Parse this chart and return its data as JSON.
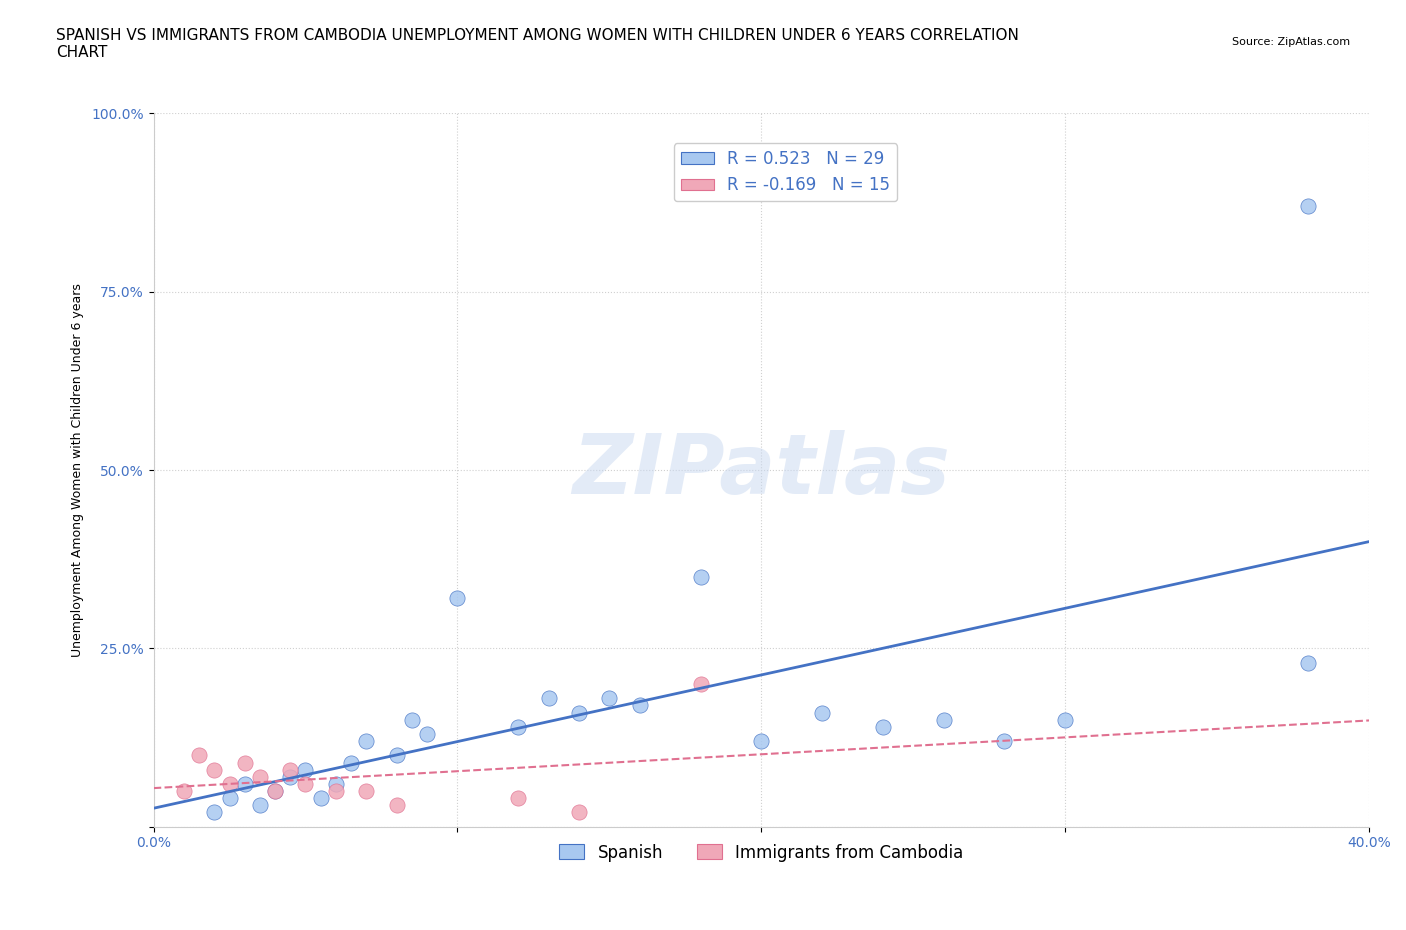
{
  "title": "SPANISH VS IMMIGRANTS FROM CAMBODIA UNEMPLOYMENT AMONG WOMEN WITH CHILDREN UNDER 6 YEARS CORRELATION\nCHART",
  "source": "Source: ZipAtlas.com",
  "xlabel": "",
  "ylabel": "Unemployment Among Women with Children Under 6 years",
  "xlim": [
    0.0,
    0.4
  ],
  "ylim": [
    0.0,
    1.0
  ],
  "xticks": [
    0.0,
    0.1,
    0.2,
    0.3,
    0.4
  ],
  "xtick_labels": [
    "0.0%",
    "",
    "",
    "",
    "40.0%"
  ],
  "yticks": [
    0.0,
    0.25,
    0.5,
    0.75,
    1.0
  ],
  "ytick_labels": [
    "",
    "25.0%",
    "50.0%",
    "75.0%",
    "100.0%"
  ],
  "spanish_R": 0.523,
  "spanish_N": 29,
  "cambodia_R": -0.169,
  "cambodia_N": 15,
  "spanish_color": "#a8c8f0",
  "cambodia_color": "#f0a8b8",
  "spanish_line_color": "#4472c4",
  "cambodia_line_color": "#e07090",
  "watermark": "ZIPatlas",
  "watermark_color": "#c8d8f0",
  "background_color": "#ffffff",
  "spanish_x": [
    0.02,
    0.025,
    0.03,
    0.035,
    0.04,
    0.045,
    0.05,
    0.055,
    0.06,
    0.065,
    0.07,
    0.08,
    0.085,
    0.09,
    0.1,
    0.12,
    0.13,
    0.14,
    0.15,
    0.16,
    0.18,
    0.2,
    0.22,
    0.24,
    0.26,
    0.28,
    0.3,
    0.38,
    0.38
  ],
  "spanish_y": [
    0.02,
    0.04,
    0.06,
    0.03,
    0.05,
    0.07,
    0.08,
    0.04,
    0.06,
    0.09,
    0.12,
    0.1,
    0.15,
    0.13,
    0.32,
    0.14,
    0.18,
    0.16,
    0.18,
    0.17,
    0.35,
    0.12,
    0.16,
    0.14,
    0.15,
    0.12,
    0.15,
    0.23,
    0.87
  ],
  "cambodia_x": [
    0.01,
    0.015,
    0.02,
    0.025,
    0.03,
    0.035,
    0.04,
    0.045,
    0.05,
    0.06,
    0.07,
    0.08,
    0.12,
    0.14,
    0.18
  ],
  "cambodia_y": [
    0.05,
    0.1,
    0.08,
    0.06,
    0.09,
    0.07,
    0.05,
    0.08,
    0.06,
    0.05,
    0.05,
    0.03,
    0.04,
    0.02,
    0.2
  ],
  "title_fontsize": 11,
  "axis_label_fontsize": 9,
  "tick_fontsize": 10,
  "legend_fontsize": 12
}
